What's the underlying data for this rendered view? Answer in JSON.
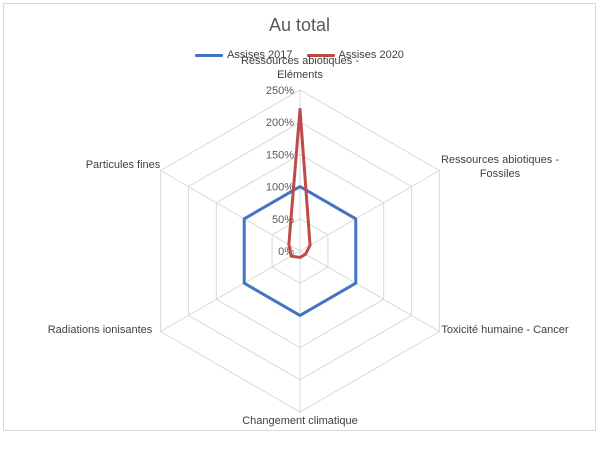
{
  "chart_data": {
    "type": "radar",
    "title": "Au total",
    "categories": [
      "Ressources abiotiques - Eléments",
      "Ressources abiotiques - Fossiles",
      "Toxicité humaine - Cancer",
      "Changement climatique",
      "Radiations ionisantes",
      "Particules fines"
    ],
    "series": [
      {
        "name": "Assises 2017",
        "color": "#4472c4",
        "values": [
          1.0,
          1.0,
          1.0,
          1.0,
          1.0,
          1.0
        ]
      },
      {
        "name": "Assises 2020",
        "color": "#be4b48",
        "values": [
          2.2,
          0.18,
          0.1,
          0.1,
          0.16,
          0.2
        ]
      }
    ],
    "ticks": [
      "0%",
      "50%",
      "100%",
      "150%",
      "200%",
      "250%"
    ],
    "tick_values": [
      0,
      0.5,
      1.0,
      1.5,
      2.0,
      2.5
    ],
    "rlim": [
      0,
      2.5
    ],
    "grid": true,
    "legend_position": "top"
  }
}
